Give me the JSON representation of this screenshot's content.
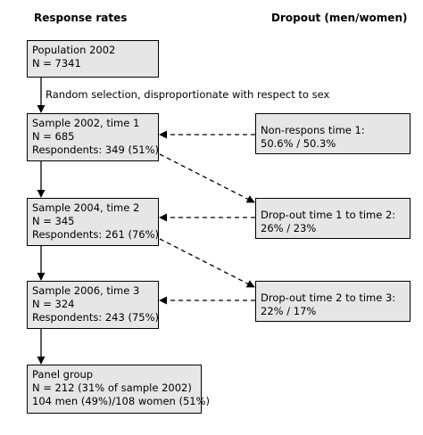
{
  "headings": {
    "left": "Response rates",
    "right": "Dropout (men/women)"
  },
  "boxes": {
    "population": [
      "Population 2002",
      "N = 7341"
    ],
    "sample2002": [
      "Sample 2002, time 1",
      "N = 685",
      "Respondents: 349 (51%)"
    ],
    "sample2004": [
      "Sample 2004, time 2",
      "N = 345",
      "Respondents: 261 (76%)"
    ],
    "sample2006": [
      "Sample 2006, time 3",
      "N = 324",
      "Respondents: 243 (75%)"
    ],
    "panel": [
      "Panel group",
      "N = 212 (31% of sample 2002)",
      "104 men (49%)/108 women (51%)"
    ],
    "dropout1": [
      "Non-respons time 1:",
      "50.6% / 50.3%"
    ],
    "dropout2": [
      "Drop-out time 1 to time 2:",
      "26% / 23%"
    ],
    "dropout3": [
      "Drop-out time 2 to time 3:",
      "22% / 17%"
    ]
  },
  "edge_label": "Random selection, disproportionate with respect to sex"
}
